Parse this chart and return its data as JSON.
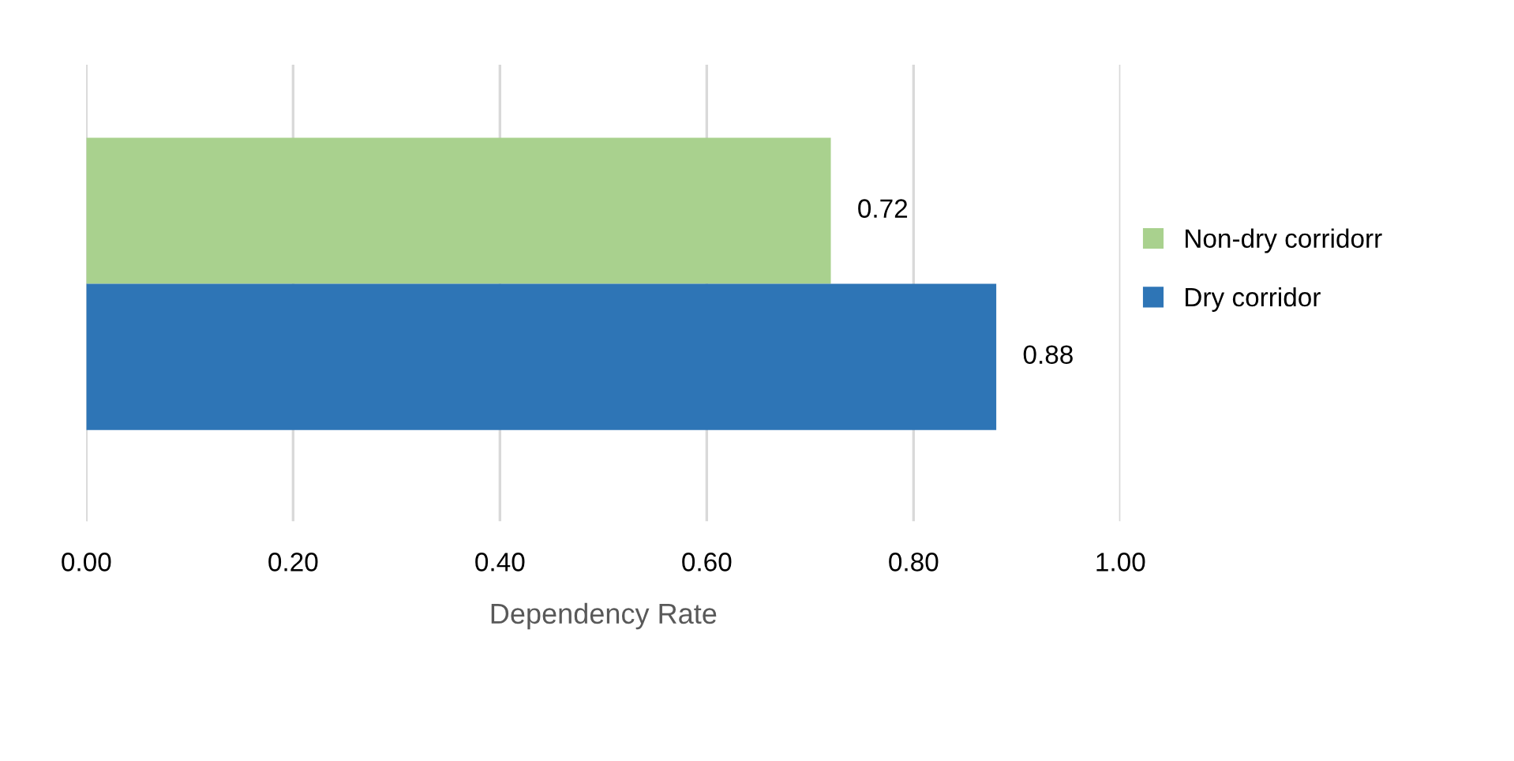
{
  "chart_data": {
    "type": "bar",
    "orientation": "horizontal",
    "xlabel": "Dependency Rate",
    "categories": [
      null
    ],
    "series": [
      {
        "name": "Non-dry corridorr",
        "color": "#a9d18e",
        "values": [
          0.72
        ]
      },
      {
        "name": "Dry corridor",
        "color": "#2e75b6",
        "values": [
          0.88
        ]
      }
    ],
    "xlim": [
      0,
      1
    ],
    "xticks": [
      {
        "value": 0,
        "label": "0.00"
      },
      {
        "value": 0.2,
        "label": "0.20"
      },
      {
        "value": 0.4,
        "label": "0.40"
      },
      {
        "value": 0.6,
        "label": "0.60"
      },
      {
        "value": 0.8,
        "label": "0.80"
      },
      {
        "value": 1,
        "label": "1.00"
      }
    ],
    "grid": "x",
    "legend": "right",
    "data_labels": true,
    "tick_labels": "x"
  }
}
